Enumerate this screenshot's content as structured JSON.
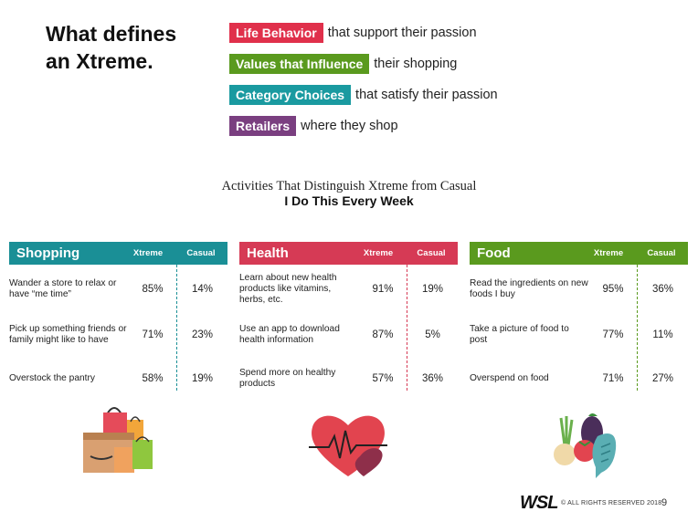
{
  "headline": {
    "line1": "What defines",
    "line2": "an Xtreme."
  },
  "legend": [
    {
      "tag": "Life Behavior",
      "text": "that support their passion",
      "color": "#e0304b"
    },
    {
      "tag": "Values that Influence",
      "text": "their shopping",
      "color": "#5a9a1e"
    },
    {
      "tag": "Category Choices",
      "text": "that satisfy their passion",
      "color": "#1a9aa0"
    },
    {
      "tag": "Retailers",
      "text": "where they shop",
      "color": "#7a3f80"
    }
  ],
  "chart": {
    "title": "Activities That Distinguish Xtreme from Casual",
    "subtitle": "I Do This Every Week"
  },
  "panels": [
    {
      "name": "Shopping",
      "color": "#1a8f96",
      "xtreme_label": "Xtreme",
      "casual_label": "Casual",
      "rows": [
        {
          "label": "Wander a store to relax or have “me time”",
          "xtreme": "85%",
          "casual": "14%"
        },
        {
          "label": "Pick up something friends or family might like to have",
          "xtreme": "71%",
          "casual": "23%"
        },
        {
          "label": "Overstock the pantry",
          "xtreme": "58%",
          "casual": "19%"
        }
      ]
    },
    {
      "name": "Health",
      "color": "#d63a55",
      "xtreme_label": "Xtreme",
      "casual_label": "Casual",
      "rows": [
        {
          "label": "Learn about new health products like vitamins, herbs, etc.",
          "xtreme": "91%",
          "casual": "19%"
        },
        {
          "label": "Use an app to download health information",
          "xtreme": "87%",
          "casual": "5%"
        },
        {
          "label": "Spend more on healthy products",
          "xtreme": "57%",
          "casual": "36%"
        }
      ]
    },
    {
      "name": "Food",
      "color": "#5a9a1e",
      "xtreme_label": "Xtreme",
      "casual_label": "Casual",
      "rows": [
        {
          "label": "Read the ingredients on new foods I buy",
          "xtreme": "95%",
          "casual": "36%"
        },
        {
          "label": "Take a picture of food to post",
          "xtreme": "77%",
          "casual": "11%"
        },
        {
          "label": "Overspend on food",
          "xtreme": "71%",
          "casual": "27%"
        }
      ]
    }
  ],
  "footer": {
    "logo": "WSL",
    "copyright": "© ALL RIGHTS RESERVED 2018",
    "page": "9"
  }
}
